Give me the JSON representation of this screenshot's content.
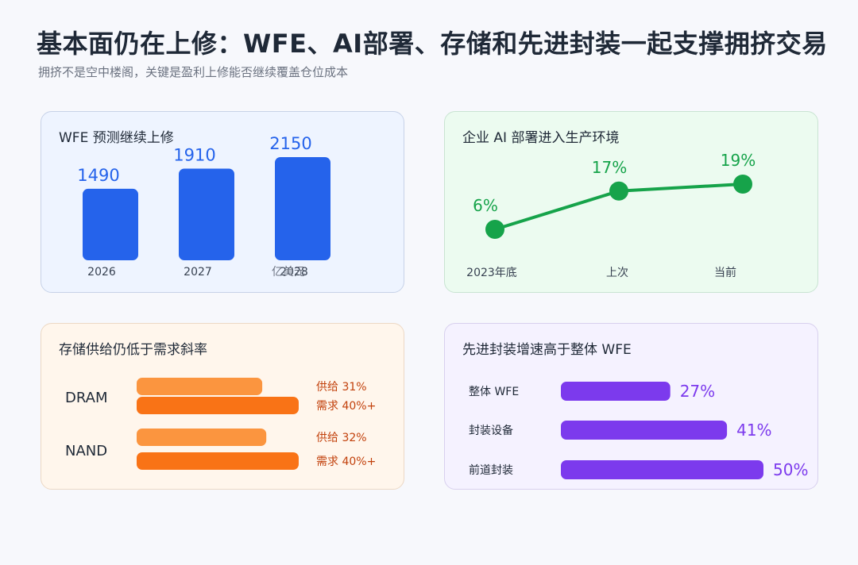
{
  "header": {
    "title": "基本面仍在上修：WFE、AI部署、存储和先进封装一起支撑拥挤交易",
    "subtitle": "拥挤不是空中楼阁，关键是盈利上修能否继续覆盖仓位成本"
  },
  "colors": {
    "blue": "#2563eb",
    "green": "#16a34a",
    "orange_light": "#fb953f",
    "orange": "#f97316",
    "orange_text": "#c2410c",
    "purple": "#7c3aed"
  },
  "chart_data": [
    {
      "type": "bar",
      "title": "WFE 预测继续上修",
      "categories": [
        "2026",
        "2027",
        "2028"
      ],
      "values": [
        1490,
        1910,
        2150
      ],
      "unit_label": "亿美元"
    },
    {
      "type": "line",
      "title": "企业 AI 部署进入生产环境",
      "categories": [
        "2023年底",
        "上次",
        "当前"
      ],
      "values": [
        6,
        17,
        19
      ],
      "value_labels": [
        "6%",
        "17%",
        "19%"
      ]
    },
    {
      "type": "bar",
      "orientation": "horizontal",
      "title": "存储供给仍低于需求斜率",
      "categories": [
        "DRAM",
        "NAND"
      ],
      "series": [
        {
          "name": "供给",
          "values": [
            31,
            32
          ],
          "labels": [
            "供给 31%",
            "供给 32%"
          ]
        },
        {
          "name": "需求",
          "values": [
            40,
            40
          ],
          "labels": [
            "需求 40%+",
            "需求 40%+"
          ]
        }
      ]
    },
    {
      "type": "bar",
      "orientation": "horizontal",
      "title": "先进封装增速高于整体 WFE",
      "categories": [
        "整体 WFE",
        "封装设备",
        "前道封装"
      ],
      "values": [
        27,
        41,
        50
      ],
      "value_labels": [
        "27%",
        "41%",
        "50%"
      ]
    }
  ]
}
